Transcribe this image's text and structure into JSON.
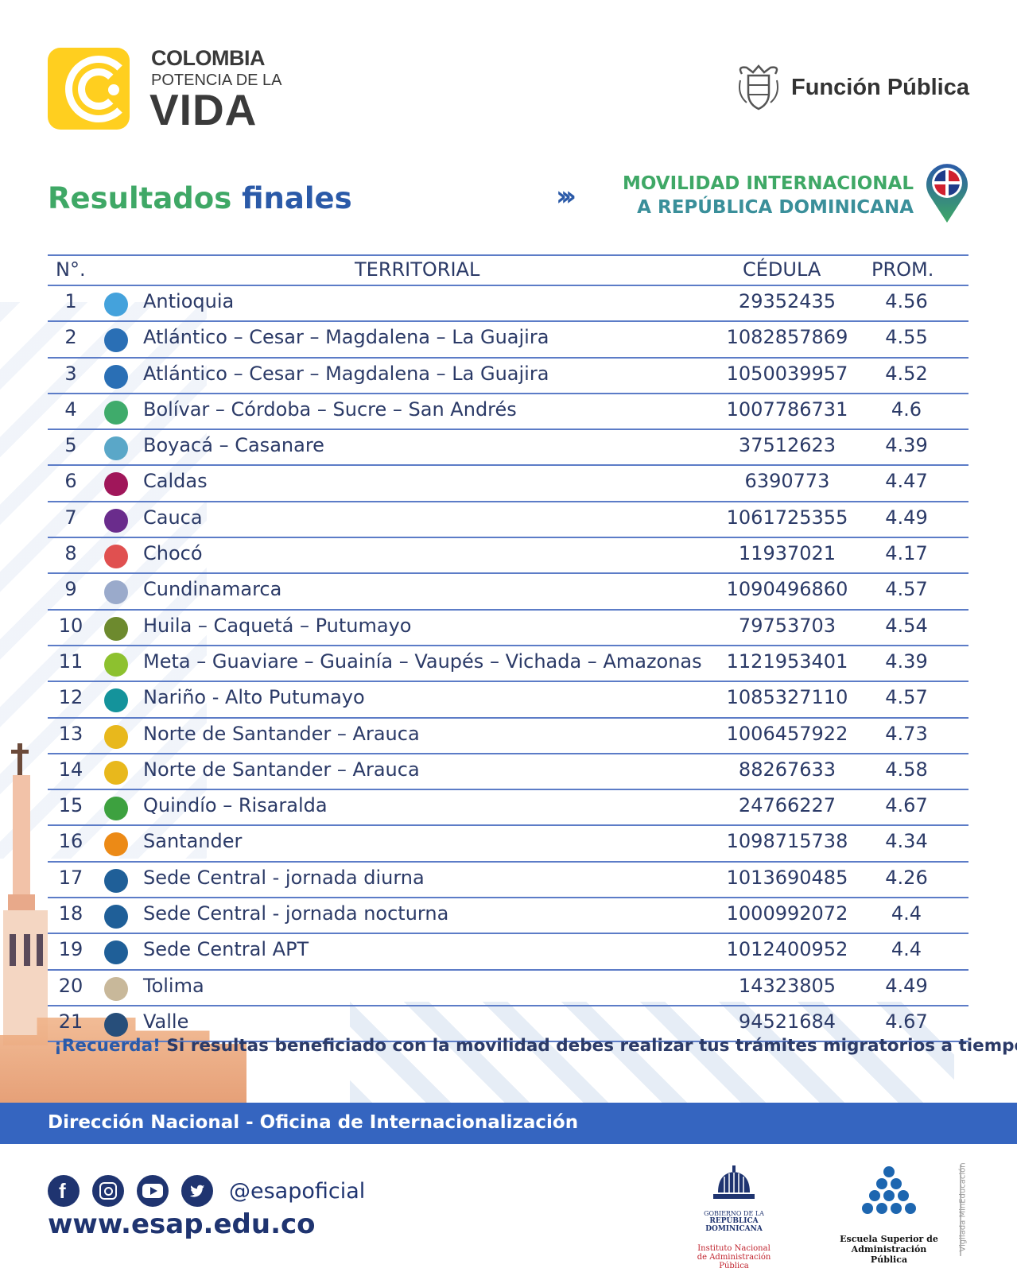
{
  "header": {
    "logo_line1": "COLOMBIA",
    "logo_line2": "POTENCIA DE LA",
    "logo_line3": "VIDA",
    "ministry": "Función Pública"
  },
  "title": {
    "part1": "Resultados",
    "part2": "finales"
  },
  "program": {
    "line1": "MOVILIDAD INTERNACIONAL",
    "line2": "A REPÚBLICA DOMINICANA"
  },
  "table": {
    "headers": {
      "num": "N°.",
      "territorial": "TERRITORIAL",
      "cedula": "CÉDULA",
      "prom": "PROM."
    },
    "rows": [
      {
        "n": "1",
        "color": "#44a2dc",
        "territorial": "Antioquia",
        "cedula": "29352435",
        "prom": "4.56"
      },
      {
        "n": "2",
        "color": "#2a6fb5",
        "territorial": "Atlántico – Cesar – Magdalena – La Guajira",
        "cedula": "1082857869",
        "prom": "4.55"
      },
      {
        "n": "3",
        "color": "#2a6fb5",
        "territorial": "Atlántico – Cesar – Magdalena – La Guajira",
        "cedula": "1050039957",
        "prom": "4.52"
      },
      {
        "n": "4",
        "color": "#3fab6b",
        "territorial": "Bolívar – Córdoba – Sucre – San Andrés",
        "cedula": "1007786731",
        "prom": "4.6"
      },
      {
        "n": "5",
        "color": "#5aa7c8",
        "territorial": "Boyacá – Casanare",
        "cedula": "37512623",
        "prom": "4.39"
      },
      {
        "n": "6",
        "color": "#a0165a",
        "territorial": "Caldas",
        "cedula": "6390773",
        "prom": "4.47"
      },
      {
        "n": "7",
        "color": "#6a2c8c",
        "territorial": "Cauca",
        "cedula": "1061725355",
        "prom": "4.49"
      },
      {
        "n": "8",
        "color": "#e05050",
        "territorial": "Chocó",
        "cedula": "11937021",
        "prom": "4.17"
      },
      {
        "n": "9",
        "color": "#9aaacb",
        "territorial": "Cundinamarca",
        "cedula": "1090496860",
        "prom": "4.57"
      },
      {
        "n": "10",
        "color": "#6d8a2e",
        "territorial": "Huila – Caquetá – Putumayo",
        "cedula": "79753703",
        "prom": "4.54"
      },
      {
        "n": "11",
        "color": "#8dc12f",
        "territorial": "Meta – Guaviare – Guainía – Vaupés – Vichada – Amazonas",
        "cedula": "1121953401",
        "prom": "4.39"
      },
      {
        "n": "12",
        "color": "#14939b",
        "territorial": "Nariño - Alto Putumayo",
        "cedula": "1085327110",
        "prom": "4.57"
      },
      {
        "n": "13",
        "color": "#e8b81c",
        "territorial": "Norte de Santander – Arauca",
        "cedula": "1006457922",
        "prom": "4.73"
      },
      {
        "n": "14",
        "color": "#e8b81c",
        "territorial": "Norte de Santander – Arauca",
        "cedula": "88267633",
        "prom": "4.58"
      },
      {
        "n": "15",
        "color": "#3da13f",
        "territorial": "Quindío – Risaralda",
        "cedula": "24766227",
        "prom": "4.67"
      },
      {
        "n": "16",
        "color": "#ec8a16",
        "territorial": "Santander",
        "cedula": "1098715738",
        "prom": "4.34"
      },
      {
        "n": "17",
        "color": "#1f5f98",
        "territorial": "Sede Central - jornada diurna",
        "cedula": "1013690485",
        "prom": "4.26"
      },
      {
        "n": "18",
        "color": "#1f5f98",
        "territorial": "Sede Central - jornada nocturna",
        "cedula": "1000992072",
        "prom": "4.4"
      },
      {
        "n": "19",
        "color": "#1f5f98",
        "territorial": "Sede Central APT",
        "cedula": "1012400952",
        "prom": "4.4"
      },
      {
        "n": "20",
        "color": "#c8b89a",
        "territorial": "Tolima",
        "cedula": "14323805",
        "prom": "4.49"
      },
      {
        "n": "21",
        "color": "#274e7a",
        "territorial": "Valle",
        "cedula": "94521684",
        "prom": "4.67"
      }
    ]
  },
  "reminder": {
    "lead": "¡Recuerda!",
    "text": " Si resultas beneficiado con la movilidad debes realizar tus trámites migratorios a tiempo."
  },
  "band_text": "Dirección Nacional - Oficina de Internacionalización",
  "footer": {
    "social_icons": [
      "facebook-icon",
      "instagram-icon",
      "youtube-icon",
      "twitter-icon"
    ],
    "handle": "@esapoficial",
    "url": "www.esap.edu.co",
    "rd_line1": "GOBIERNO DE LA",
    "rd_line2": "REPÚBLICA DOMINICANA",
    "rd_line3": "Instituto Nacional",
    "rd_line4": "de Administración Pública",
    "esap_line1": "Escuela Superior de",
    "esap_line2": "Administración Pública",
    "vigilada": "Vigilada MinEducación"
  }
}
